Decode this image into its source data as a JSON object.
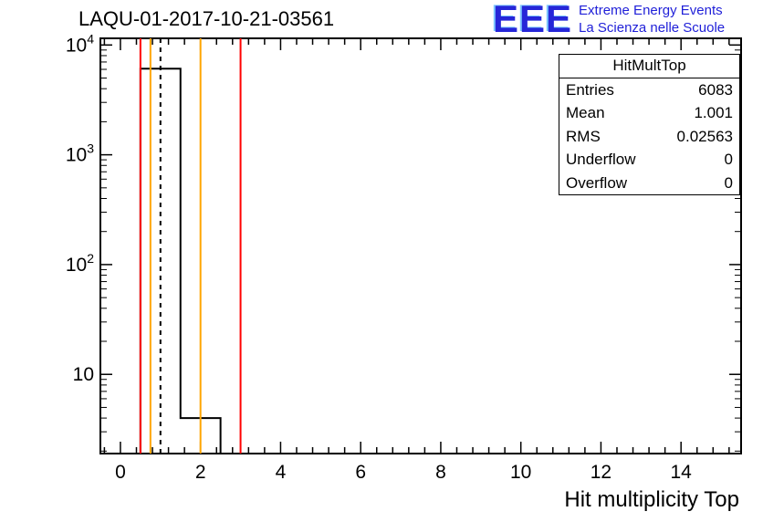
{
  "title": "LAQU-01-2017-10-21-03561",
  "logo": {
    "text": "EEE",
    "line1": "Extreme Energy Events",
    "line2": "La Scienza nelle Scuole",
    "color": "#2222cc"
  },
  "stats": {
    "title": "HitMultTop",
    "rows": [
      {
        "label": "Entries",
        "value": "6083"
      },
      {
        "label": "Mean",
        "value": "1.001"
      },
      {
        "label": "RMS",
        "value": "0.02563"
      },
      {
        "label": "Underflow",
        "value": "0"
      },
      {
        "label": "Overflow",
        "value": "0"
      }
    ]
  },
  "chart_data": {
    "type": "bar",
    "title": "LAQU-01-2017-10-21-03561",
    "xlabel": "Hit multiplicity Top",
    "ylabel": "",
    "y_scale": "log",
    "x_range": [
      -0.5,
      15.5
    ],
    "y_range": [
      1.9,
      11500
    ],
    "x_major_ticks": [
      0,
      2,
      4,
      6,
      8,
      10,
      12,
      14
    ],
    "x_minor_step": 0.4,
    "grid": false,
    "legend": false,
    "bins": [
      {
        "x0": 0.5,
        "x1": 1.5,
        "count": 6079
      },
      {
        "x0": 1.5,
        "x1": 2.5,
        "count": 4
      }
    ],
    "cut_lines": [
      {
        "x": 0.5,
        "color": "#ff0000",
        "style": "solid"
      },
      {
        "x": 0.75,
        "color": "#ffa500",
        "style": "solid"
      },
      {
        "x": 1.0,
        "color": "#000000",
        "style": "dashed"
      },
      {
        "x": 2.0,
        "color": "#ffa500",
        "style": "solid"
      },
      {
        "x": 3.0,
        "color": "#ff0000",
        "style": "solid"
      }
    ],
    "histogram_color": "#000000"
  }
}
